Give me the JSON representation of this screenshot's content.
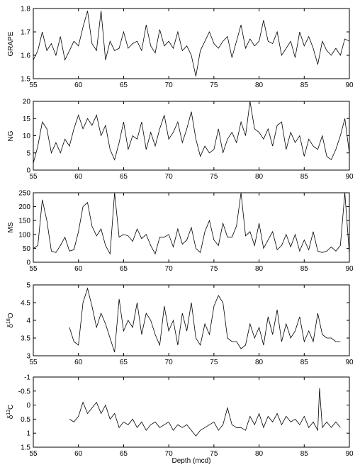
{
  "chart_data": [
    {
      "type": "line",
      "ylabel": "GRAPE",
      "xlim": [
        55,
        90
      ],
      "ylim": [
        1.5,
        1.8
      ],
      "y_reversed": false,
      "xticks": [
        "55",
        "60",
        "65",
        "70",
        "75",
        "80",
        "85",
        "90"
      ],
      "yticks": [
        "1.5",
        "1.6",
        "1.7",
        "1.8"
      ],
      "series": [
        {
          "x": [
            55,
            55.5,
            56,
            56.5,
            57,
            57.5,
            58,
            58.5,
            59,
            59.5,
            60,
            60.5,
            61,
            61.5,
            62,
            62.5,
            63,
            63.5,
            64,
            64.5,
            65,
            65.5,
            66,
            66.5,
            67,
            67.5,
            68,
            68.5,
            69,
            69.5,
            70,
            70.5,
            71,
            71.5,
            72,
            72.5,
            73,
            73.5,
            74,
            74.5,
            75,
            75.5,
            76,
            76.5,
            77,
            77.5,
            78,
            78.5,
            79,
            79.5,
            80,
            80.5,
            81,
            81.5,
            82,
            82.5,
            83,
            83.5,
            84,
            84.5,
            85,
            85.5,
            86,
            86.5,
            87,
            87.5,
            88,
            88.5,
            89,
            89.5,
            90
          ],
          "y": [
            1.58,
            1.62,
            1.7,
            1.62,
            1.65,
            1.6,
            1.68,
            1.58,
            1.62,
            1.66,
            1.64,
            1.72,
            1.79,
            1.65,
            1.62,
            1.79,
            1.58,
            1.66,
            1.62,
            1.63,
            1.7,
            1.63,
            1.65,
            1.66,
            1.62,
            1.73,
            1.64,
            1.61,
            1.71,
            1.64,
            1.66,
            1.63,
            1.7,
            1.62,
            1.64,
            1.6,
            1.51,
            1.62,
            1.66,
            1.7,
            1.65,
            1.63,
            1.66,
            1.68,
            1.59,
            1.66,
            1.73,
            1.63,
            1.67,
            1.64,
            1.66,
            1.75,
            1.66,
            1.65,
            1.7,
            1.6,
            1.63,
            1.66,
            1.59,
            1.7,
            1.64,
            1.68,
            1.63,
            1.56,
            1.66,
            1.62,
            1.6,
            1.63,
            1.6,
            1.67,
            1.66
          ]
        }
      ]
    },
    {
      "type": "line",
      "ylabel": "NG",
      "xlim": [
        55,
        90
      ],
      "ylim": [
        0,
        20
      ],
      "y_reversed": false,
      "xticks": [
        "55",
        "60",
        "65",
        "70",
        "75",
        "80",
        "85",
        "90"
      ],
      "yticks": [
        "0",
        "5",
        "10",
        "15",
        "20"
      ],
      "series": [
        {
          "x": [
            55,
            55.5,
            56,
            56.5,
            57,
            57.5,
            58,
            58.5,
            59,
            59.5,
            60,
            60.5,
            61,
            61.5,
            62,
            62.5,
            63,
            63.5,
            64,
            64.5,
            65,
            65.5,
            66,
            66.5,
            67,
            67.5,
            68,
            68.5,
            69,
            69.5,
            70,
            70.5,
            71,
            71.5,
            72,
            72.5,
            73,
            73.5,
            74,
            74.5,
            75,
            75.5,
            76,
            76.5,
            77,
            77.5,
            78,
            78.5,
            79,
            79.5,
            80,
            80.5,
            81,
            81.5,
            82,
            82.5,
            83,
            83.5,
            84,
            84.5,
            85,
            85.5,
            86,
            86.5,
            87,
            87.5,
            88,
            88.5,
            89,
            89.5,
            90
          ],
          "y": [
            2,
            7,
            14,
            12,
            5,
            8,
            5,
            9,
            7,
            12,
            16,
            12,
            15,
            13,
            16,
            10,
            13,
            6,
            3,
            8,
            14,
            6,
            10,
            9,
            14,
            6,
            11,
            7,
            12,
            16,
            9,
            11,
            14,
            8,
            12,
            17,
            9,
            4,
            7,
            5,
            6,
            12,
            5,
            9,
            11,
            8,
            14,
            10,
            20,
            12,
            11,
            9,
            12,
            7,
            13,
            14,
            6,
            11,
            8,
            10,
            4,
            9,
            7,
            6,
            10,
            4,
            3,
            6,
            10,
            15,
            5
          ]
        }
      ]
    },
    {
      "type": "line",
      "ylabel": "MS",
      "xlim": [
        55,
        90
      ],
      "ylim": [
        0,
        250
      ],
      "y_reversed": false,
      "xticks": [
        "55",
        "60",
        "65",
        "70",
        "75",
        "80",
        "85",
        "90"
      ],
      "yticks": [
        "0",
        "50",
        "100",
        "150",
        "200",
        "250"
      ],
      "series": [
        {
          "x": [
            55,
            55.5,
            56,
            56.5,
            57,
            57.5,
            58,
            58.5,
            59,
            59.5,
            60,
            60.5,
            61,
            61.5,
            62,
            62.5,
            63,
            63.5,
            64,
            64.5,
            65,
            65.5,
            66,
            66.5,
            67,
            67.5,
            68,
            68.5,
            69,
            69.5,
            70,
            70.5,
            71,
            71.5,
            72,
            72.5,
            73,
            73.5,
            74,
            74.5,
            75,
            75.5,
            76,
            76.5,
            77,
            77.5,
            78,
            78.5,
            79,
            79.5,
            80,
            80.5,
            81,
            81.5,
            82,
            82.5,
            83,
            83.5,
            84,
            84.5,
            85,
            85.5,
            86,
            86.5,
            87,
            87.5,
            88,
            88.5,
            89,
            89.5,
            90
          ],
          "y": [
            50,
            60,
            225,
            150,
            40,
            35,
            60,
            90,
            40,
            45,
            110,
            200,
            215,
            130,
            95,
            120,
            60,
            30,
            250,
            90,
            100,
            95,
            75,
            120,
            85,
            100,
            60,
            30,
            90,
            90,
            100,
            55,
            120,
            65,
            80,
            125,
            50,
            35,
            110,
            150,
            80,
            60,
            140,
            90,
            90,
            130,
            250,
            95,
            110,
            60,
            140,
            50,
            80,
            110,
            45,
            60,
            100,
            55,
            100,
            40,
            80,
            45,
            110,
            40,
            35,
            40,
            55,
            40,
            60,
            250,
            30
          ]
        }
      ]
    },
    {
      "type": "line",
      "ylabel": "δ18O",
      "xlim": [
        55,
        90
      ],
      "ylim": [
        3,
        5
      ],
      "y_reversed": false,
      "xticks": [
        "55",
        "60",
        "65",
        "70",
        "75",
        "80",
        "85",
        "90"
      ],
      "yticks": [
        "3",
        "3.5",
        "4",
        "4.5",
        "5"
      ],
      "series": [
        {
          "x": [
            59,
            59.5,
            60,
            60.5,
            61,
            61.5,
            62,
            62.5,
            63,
            63.5,
            64,
            64.5,
            65,
            65.5,
            66,
            66.5,
            67,
            67.5,
            68,
            68.5,
            69,
            69.5,
            70,
            70.5,
            71,
            71.5,
            72,
            72.5,
            73,
            73.5,
            74,
            74.5,
            75,
            75.5,
            76,
            76.5,
            77,
            77.5,
            78,
            78.5,
            79,
            79.5,
            80,
            80.5,
            81,
            81.5,
            82,
            82.5,
            83,
            83.5,
            84,
            84.5,
            85,
            85.5,
            86,
            86.5,
            87,
            87.5,
            88,
            88.5,
            89
          ],
          "y": [
            3.8,
            3.4,
            3.3,
            4.5,
            4.9,
            4.4,
            3.8,
            4.2,
            3.9,
            3.5,
            3.1,
            4.6,
            3.7,
            4.0,
            3.8,
            4.5,
            3.6,
            4.2,
            4.0,
            3.6,
            3.3,
            4.4,
            3.7,
            4.0,
            3.3,
            4.2,
            3.7,
            4.5,
            3.5,
            3.3,
            3.9,
            3.6,
            4.4,
            4.7,
            4.5,
            3.5,
            3.4,
            3.4,
            3.2,
            3.3,
            3.9,
            3.5,
            3.8,
            3.3,
            4.1,
            3.6,
            4.3,
            3.4,
            3.9,
            3.5,
            3.7,
            4.1,
            3.4,
            3.7,
            3.4,
            4.2,
            3.6,
            3.5,
            3.5,
            3.4,
            3.4
          ]
        }
      ]
    },
    {
      "type": "line",
      "ylabel": "δ13C",
      "xlabel": "Depth (mcd)",
      "xlim": [
        55,
        90
      ],
      "ylim": [
        -1,
        1.5
      ],
      "y_reversed": true,
      "xticks": [
        "55",
        "60",
        "65",
        "70",
        "75",
        "80",
        "85",
        "90"
      ],
      "yticks": [
        "-1",
        "-0.5",
        "0",
        "0.5",
        "1",
        "1.5"
      ],
      "series": [
        {
          "x": [
            59,
            59.5,
            60,
            60.5,
            61,
            61.5,
            62,
            62.5,
            63,
            63.5,
            64,
            64.5,
            65,
            65.5,
            66,
            66.5,
            67,
            67.5,
            68,
            68.5,
            69,
            69.5,
            70,
            70.5,
            71,
            71.5,
            72,
            72.5,
            73,
            73.5,
            74,
            74.5,
            75,
            75.5,
            76,
            76.5,
            77,
            77.5,
            78,
            78.5,
            79,
            79.5,
            80,
            80.5,
            81,
            81.5,
            82,
            82.5,
            83,
            83.5,
            84,
            84.5,
            85,
            85.5,
            86,
            86.5,
            86.7,
            87,
            87.5,
            88,
            88.5,
            89
          ],
          "y": [
            0.5,
            0.6,
            0.4,
            -0.1,
            0.3,
            0.1,
            -0.1,
            0.3,
            0.0,
            0.5,
            0.3,
            0.8,
            0.6,
            0.7,
            0.5,
            0.8,
            0.6,
            0.9,
            0.7,
            0.6,
            0.8,
            0.7,
            0.6,
            0.9,
            0.7,
            0.8,
            0.7,
            0.9,
            1.1,
            0.9,
            0.8,
            0.7,
            0.6,
            0.9,
            0.7,
            0.1,
            0.7,
            0.8,
            0.8,
            0.9,
            0.4,
            0.7,
            0.3,
            0.8,
            0.4,
            0.6,
            0.3,
            0.7,
            0.4,
            0.6,
            0.5,
            0.7,
            0.4,
            0.8,
            0.6,
            0.9,
            -0.6,
            0.8,
            0.6,
            0.8,
            0.6,
            0.8
          ]
        }
      ]
    }
  ]
}
